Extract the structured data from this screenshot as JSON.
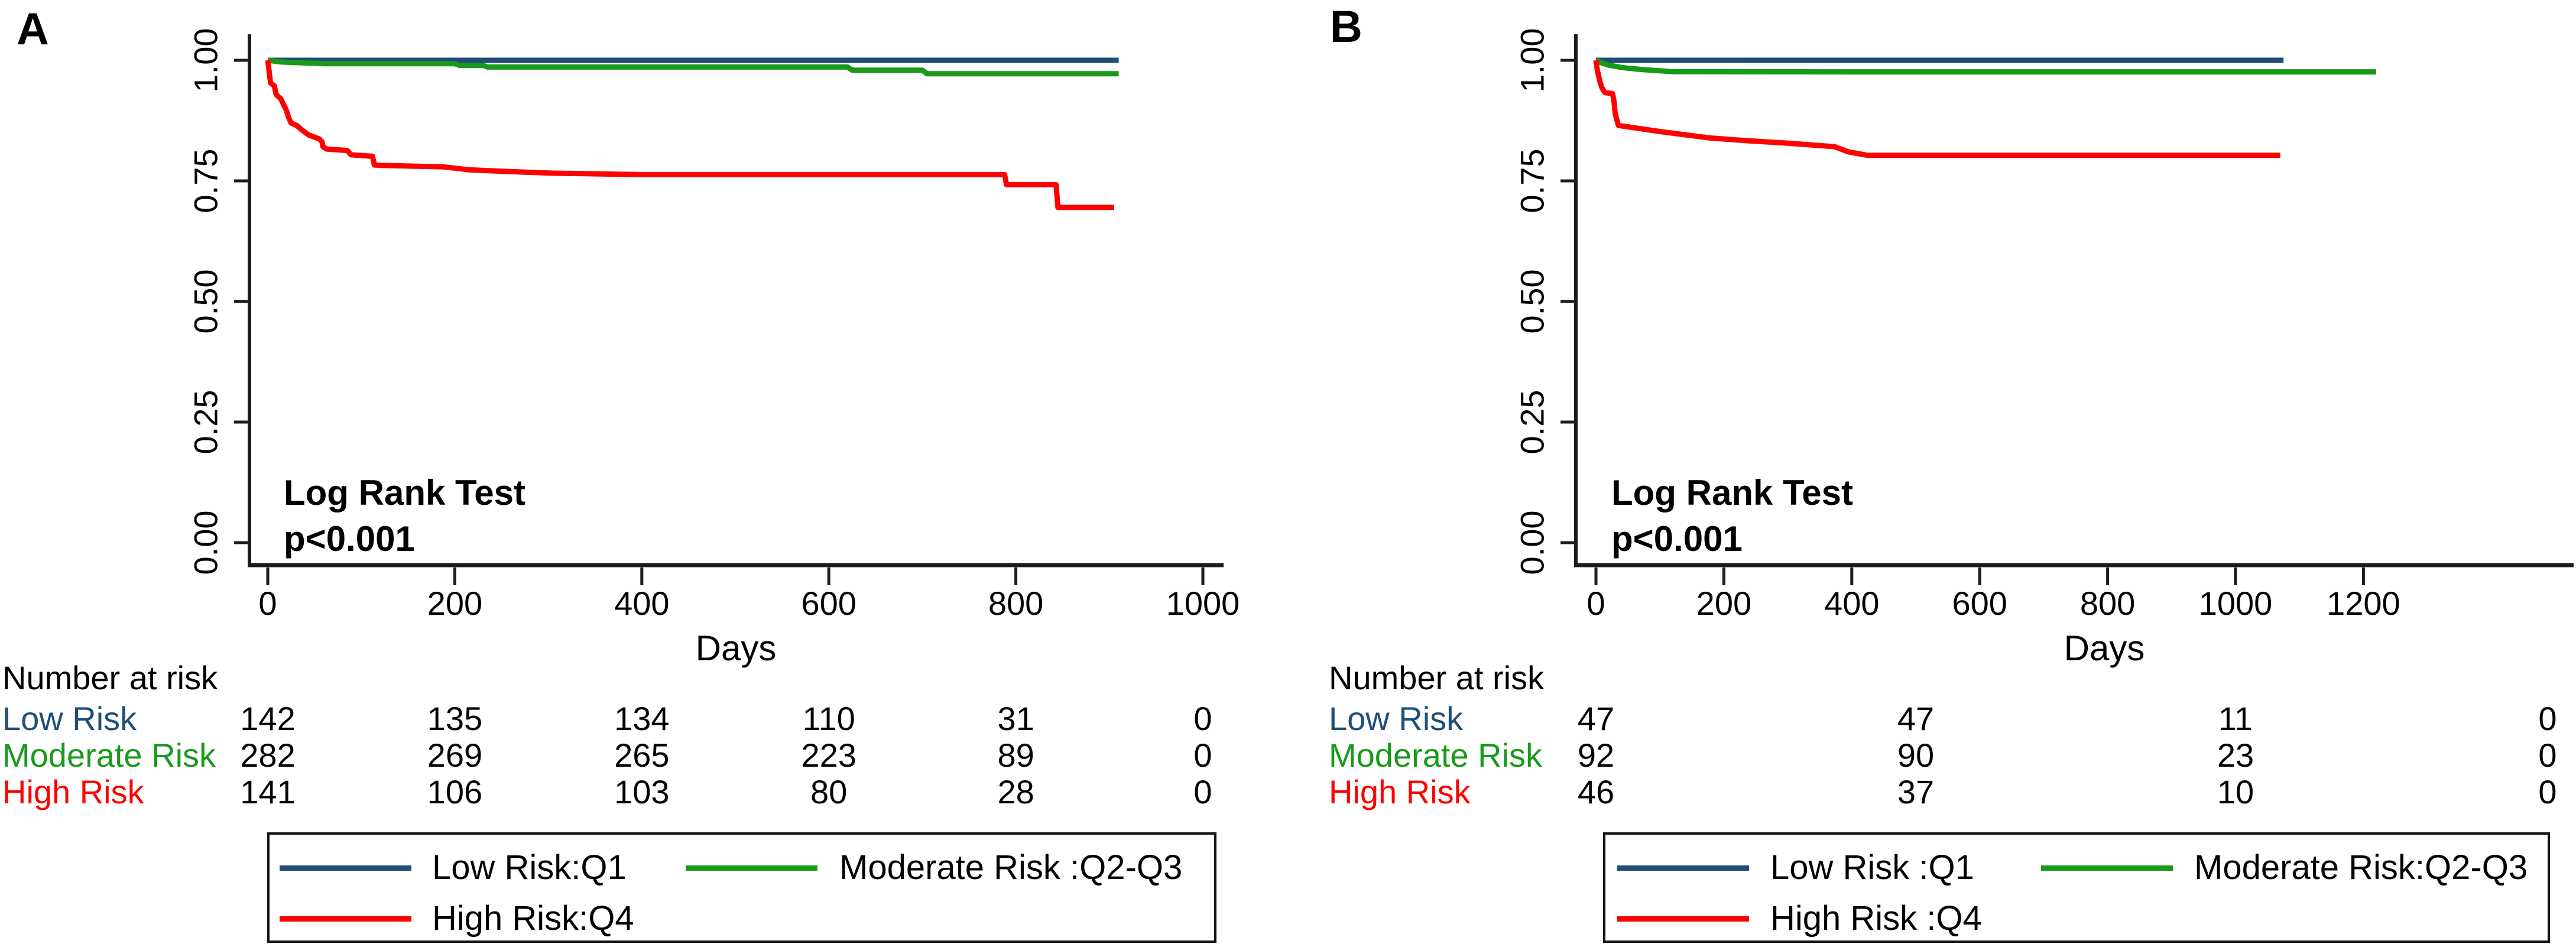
{
  "figure": {
    "background": "#ffffff",
    "axis_color": "#1c1c1c",
    "colors": {
      "navy": "#1f4e79",
      "green": "#189a18",
      "red": "#ff0000"
    }
  },
  "chart_data": [
    {
      "type": "line",
      "panel_label": "A",
      "xlabel": "Days",
      "ylabel": "",
      "annotation": [
        "Log Rank Test",
        "p<0.001"
      ],
      "x_ticks": [
        0,
        200,
        400,
        600,
        800,
        1000
      ],
      "y_ticks": [
        {
          "label": "1.00",
          "value": 1.0
        },
        {
          "label": "0.75",
          "value": 0.75
        },
        {
          "label": "0.50",
          "value": 0.5
        },
        {
          "label": "0.25",
          "value": 0.25
        },
        {
          "label": "0.00",
          "value": 0.0
        }
      ],
      "xlim": [
        0,
        1020
      ],
      "ylim": [
        0.0,
        1.0
      ],
      "legend_position": "bottom",
      "grid": false,
      "series": [
        {
          "name": "Low Risk",
          "color": "#1f4e79",
          "points": [
            [
              0,
              1.0
            ],
            [
              910,
              1.0
            ]
          ]
        },
        {
          "name": "Moderate Risk",
          "color": "#189a18",
          "points": [
            [
              0,
              1.0
            ],
            [
              15,
              0.9965
            ],
            [
              40,
              0.9945
            ],
            [
              60,
              0.993
            ],
            [
              200,
              0.993
            ],
            [
              205,
              0.9895
            ],
            [
              230,
              0.9895
            ],
            [
              235,
              0.986
            ],
            [
              620,
              0.986
            ],
            [
              625,
              0.9795
            ],
            [
              700,
              0.9795
            ],
            [
              705,
              0.972
            ],
            [
              910,
              0.972
            ]
          ]
        },
        {
          "name": "High Risk",
          "color": "#ff0000",
          "points": [
            [
              0,
              1.0
            ],
            [
              3,
              0.953
            ],
            [
              7,
              0.947
            ],
            [
              9,
              0.929
            ],
            [
              14,
              0.92
            ],
            [
              17,
              0.908
            ],
            [
              20,
              0.896
            ],
            [
              22,
              0.883
            ],
            [
              25,
              0.87
            ],
            [
              31,
              0.865
            ],
            [
              35,
              0.858
            ],
            [
              39,
              0.852
            ],
            [
              44,
              0.845
            ],
            [
              51,
              0.84
            ],
            [
              55,
              0.837
            ],
            [
              58,
              0.831
            ],
            [
              59,
              0.821
            ],
            [
              63,
              0.816
            ],
            [
              85,
              0.813
            ],
            [
              89,
              0.804
            ],
            [
              112,
              0.801
            ],
            [
              114,
              0.783
            ],
            [
              123,
              0.782
            ],
            [
              188,
              0.779
            ],
            [
              215,
              0.773
            ],
            [
              251,
              0.77
            ],
            [
              303,
              0.766
            ],
            [
              400,
              0.763
            ],
            [
              788,
              0.763
            ],
            [
              790,
              0.742
            ],
            [
              843,
              0.742
            ],
            [
              845,
              0.695
            ],
            [
              905,
              0.695
            ]
          ]
        }
      ],
      "number_at_risk": {
        "title": "Number at risk",
        "columns_days": [
          0,
          200,
          400,
          600,
          800,
          1000
        ],
        "rows": [
          {
            "label": "Low Risk",
            "color": "#1f4e79",
            "counts": [
              142,
              135,
              134,
              110,
              31,
              0
            ]
          },
          {
            "label": "Moderate Risk",
            "color": "#189a18",
            "counts": [
              282,
              269,
              265,
              223,
              89,
              0
            ]
          },
          {
            "label": "High Risk",
            "color": "#ff0000",
            "counts": [
              141,
              106,
              103,
              80,
              28,
              0
            ]
          }
        ]
      },
      "legend": [
        {
          "label": "Low Risk:Q1",
          "color": "#1f4e79"
        },
        {
          "label": "Moderate Risk :Q2-Q3",
          "color": "#189a18"
        },
        {
          "label": "High Risk:Q4",
          "color": "#ff0000"
        }
      ]
    },
    {
      "type": "line",
      "panel_label": "B",
      "xlabel": "Days",
      "ylabel": "",
      "annotation": [
        "Log Rank Test",
        "p<0.001"
      ],
      "x_ticks": [
        0,
        200,
        400,
        600,
        800,
        1000,
        1200
      ],
      "y_ticks": [
        {
          "label": "1.00",
          "value": 1.0
        },
        {
          "label": "0.75",
          "value": 0.75
        },
        {
          "label": "0.50",
          "value": 0.5
        },
        {
          "label": "0.25",
          "value": 0.25
        },
        {
          "label": "0.00",
          "value": 0.0
        }
      ],
      "xlim": [
        0,
        1530
      ],
      "ylim": [
        0.0,
        1.0
      ],
      "legend_position": "bottom",
      "grid": false,
      "series": [
        {
          "name": "Low Risk",
          "color": "#1f4e79",
          "points": [
            [
              0,
              1.0
            ],
            [
              1075,
              1.0
            ]
          ]
        },
        {
          "name": "Moderate Risk",
          "color": "#189a18",
          "points": [
            [
              0,
              1.0
            ],
            [
              8,
              0.995
            ],
            [
              20,
              0.99
            ],
            [
              40,
              0.985
            ],
            [
              70,
              0.981
            ],
            [
              120,
              0.9765
            ],
            [
              400,
              0.976
            ],
            [
              1220,
              0.976
            ]
          ]
        },
        {
          "name": "High Risk",
          "color": "#ff0000",
          "points": [
            [
              0,
              1.0
            ],
            [
              2,
              0.98
            ],
            [
              5,
              0.963
            ],
            [
              6,
              0.957
            ],
            [
              9,
              0.944
            ],
            [
              14,
              0.933
            ],
            [
              26,
              0.931
            ],
            [
              28,
              0.917
            ],
            [
              30,
              0.89
            ],
            [
              34,
              0.87
            ],
            [
              35,
              0.865
            ],
            [
              102,
              0.852
            ],
            [
              178,
              0.839
            ],
            [
              240,
              0.833
            ],
            [
              302,
              0.828
            ],
            [
              373,
              0.821
            ],
            [
              395,
              0.81
            ],
            [
              425,
              0.803
            ],
            [
              1070,
              0.803
            ]
          ]
        }
      ],
      "number_at_risk": {
        "title": "Number at risk",
        "columns_days": [
          0,
          500,
          1000,
          1500
        ],
        "rows": [
          {
            "label": "Low Risk",
            "color": "#1f4e79",
            "counts": [
              47,
              47,
              11,
              0
            ]
          },
          {
            "label": "Moderate Risk",
            "color": "#189a18",
            "counts": [
              92,
              90,
              23,
              0
            ]
          },
          {
            "label": "High Risk",
            "color": "#ff0000",
            "counts": [
              46,
              37,
              10,
              0
            ]
          }
        ]
      },
      "legend": [
        {
          "label": "Low Risk :Q1",
          "color": "#1f4e79"
        },
        {
          "label": "Moderate Risk:Q2-Q3",
          "color": "#189a18"
        },
        {
          "label": "High Risk :Q4",
          "color": "#ff0000"
        }
      ]
    }
  ]
}
